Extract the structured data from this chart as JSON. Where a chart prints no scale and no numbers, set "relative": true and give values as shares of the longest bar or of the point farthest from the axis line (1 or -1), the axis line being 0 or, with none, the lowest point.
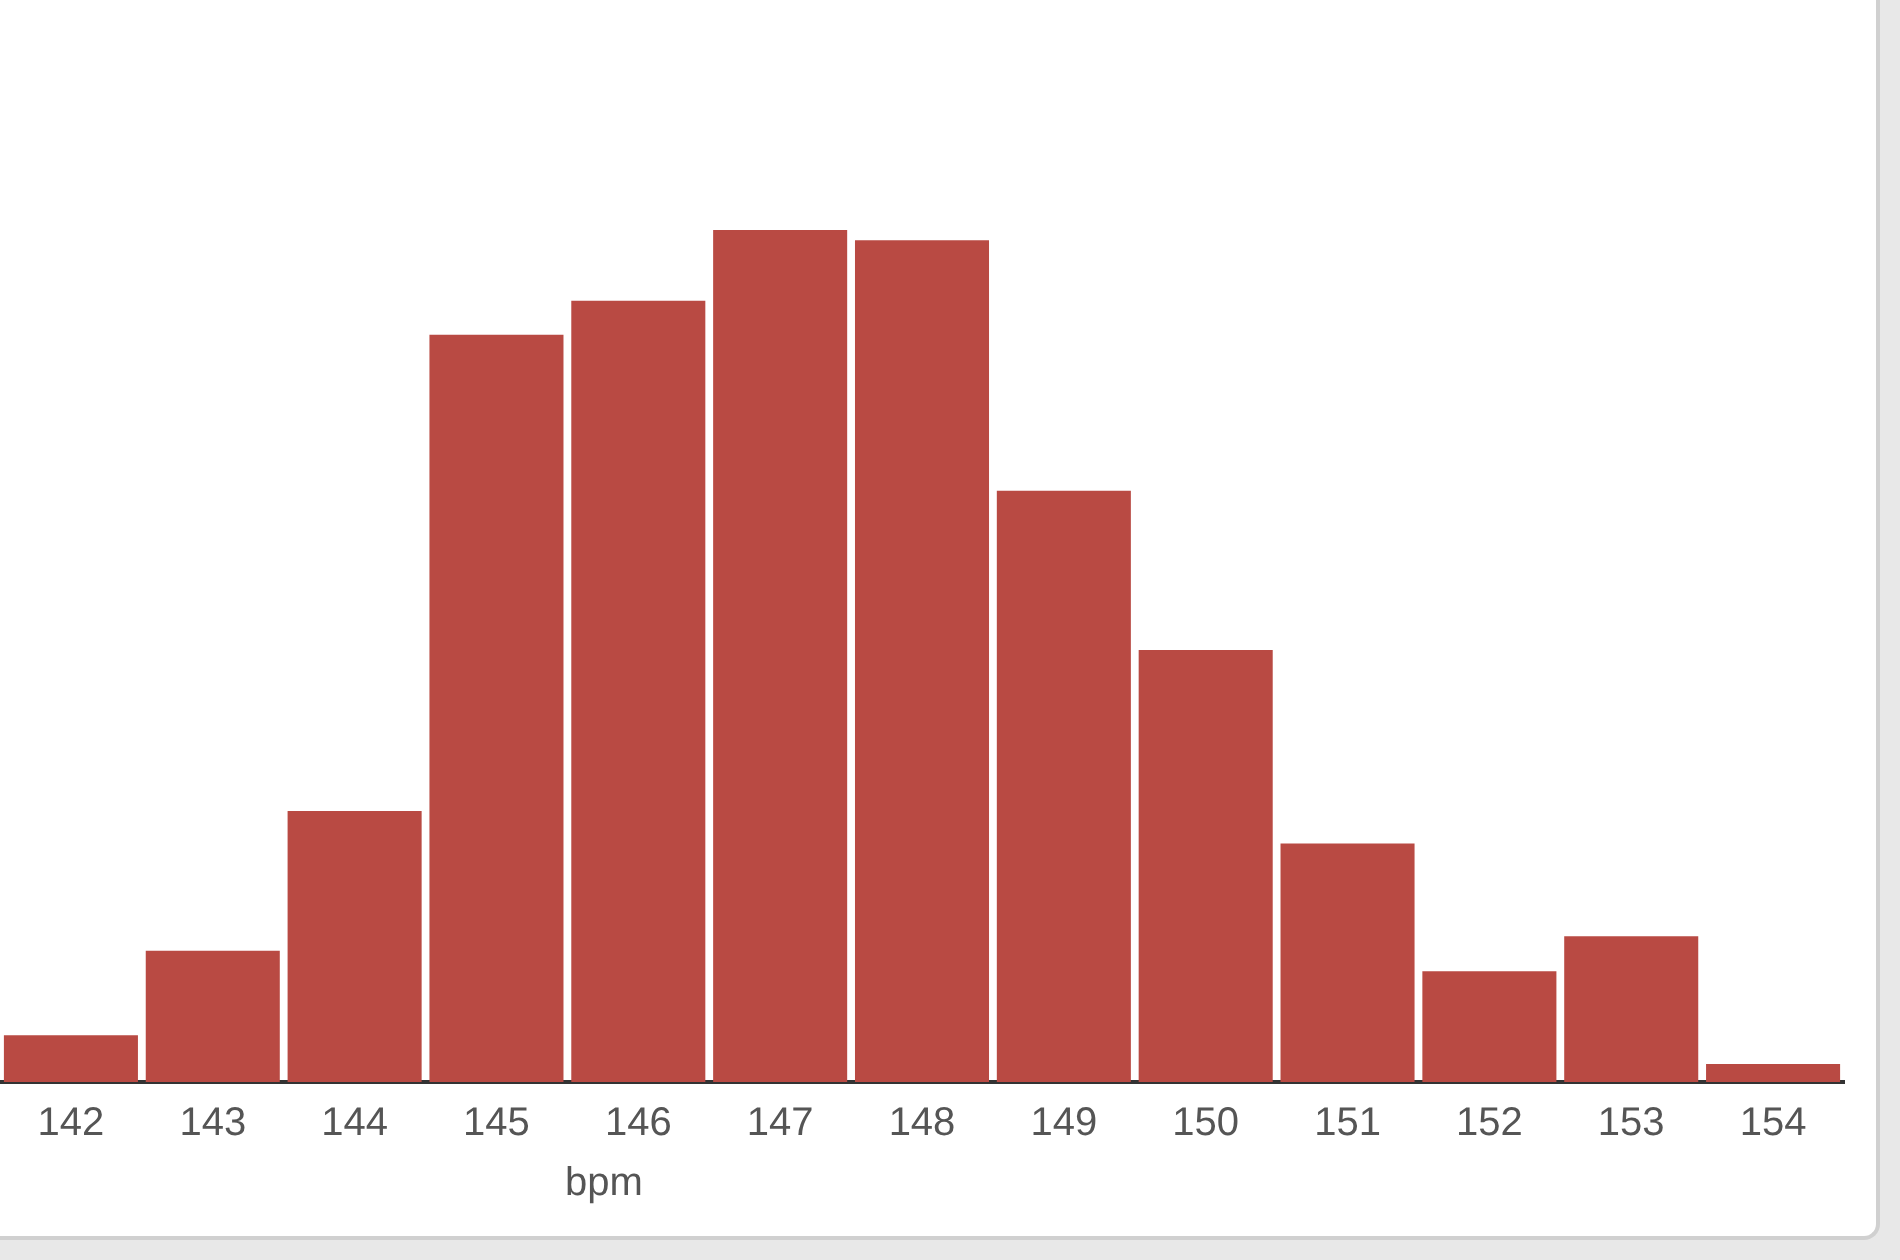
{
  "chart_data": {
    "type": "bar",
    "xlabel": "bpm",
    "relative": true,
    "color": "#b94a43",
    "categories": [
      "142",
      "143",
      "144",
      "145",
      "146",
      "147",
      "148",
      "149",
      "150",
      "151",
      "152",
      "153",
      "154"
    ],
    "values": [
      0.055,
      0.154,
      0.318,
      0.877,
      0.917,
      1,
      0.988,
      0.694,
      0.507,
      0.28,
      0.13,
      0.171,
      0.021
    ]
  }
}
